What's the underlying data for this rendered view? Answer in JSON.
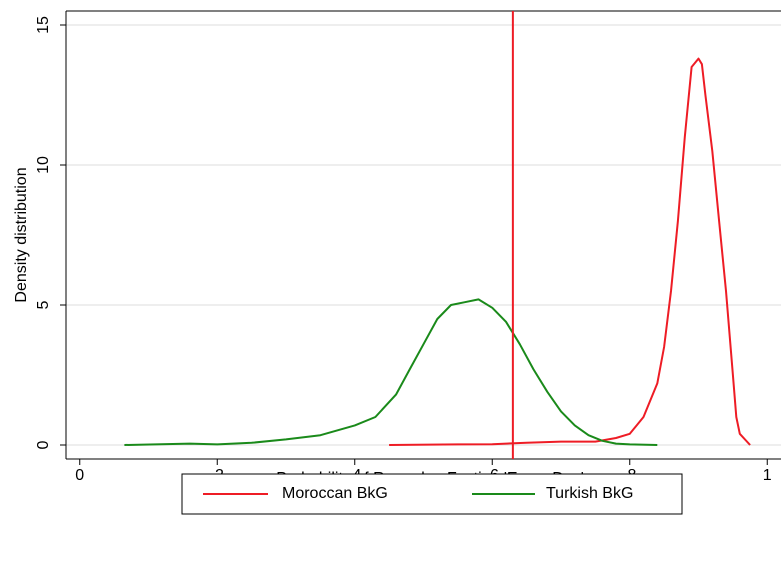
{
  "chart_data": {
    "type": "line",
    "x_label": "Probability of Ramadan Fasting 'Every Day'",
    "y_label": "Density distribution",
    "xlim": [
      -0.02,
      1.02
    ],
    "ylim": [
      -0.5,
      15.5
    ],
    "xticks": [
      0,
      {
        "value": 0.2,
        "label": ".2"
      },
      {
        "value": 0.4,
        "label": ".4"
      },
      {
        "value": 0.6,
        "label": ".6"
      },
      {
        "value": 0.8,
        "label": ".8"
      },
      1
    ],
    "yticks": [
      0,
      5,
      10,
      15
    ],
    "grid": true,
    "legend": "bottom",
    "xline": {
      "value": 0.63,
      "color": "#ee1c25"
    },
    "series": [
      {
        "name": "Moroccan BkG",
        "color": "#ee1c25",
        "x": [
          0.45,
          0.55,
          0.6,
          0.65,
          0.7,
          0.75,
          0.78,
          0.8,
          0.82,
          0.84,
          0.85,
          0.86,
          0.87,
          0.88,
          0.89,
          0.9,
          0.905,
          0.91,
          0.92,
          0.93,
          0.94,
          0.95,
          0.955,
          0.96,
          0.975
        ],
        "values": [
          0,
          0.02,
          0.03,
          0.08,
          0.12,
          0.12,
          0.25,
          0.4,
          1.0,
          2.2,
          3.5,
          5.5,
          8.0,
          11.0,
          13.5,
          13.8,
          13.6,
          12.5,
          10.5,
          8.0,
          5.5,
          2.5,
          1.0,
          0.4,
          0
        ]
      },
      {
        "name": "Turkish BkG",
        "color": "#1a8a1a",
        "x": [
          0.065,
          0.16,
          0.2,
          0.25,
          0.3,
          0.35,
          0.4,
          0.43,
          0.46,
          0.48,
          0.5,
          0.52,
          0.54,
          0.56,
          0.58,
          0.6,
          0.62,
          0.64,
          0.66,
          0.68,
          0.7,
          0.72,
          0.74,
          0.76,
          0.78,
          0.8,
          0.84
        ],
        "values": [
          0,
          0.05,
          0.02,
          0.08,
          0.2,
          0.35,
          0.7,
          1.0,
          1.8,
          2.7,
          3.6,
          4.5,
          5.0,
          5.1,
          5.2,
          4.9,
          4.4,
          3.6,
          2.7,
          1.9,
          1.2,
          0.7,
          0.35,
          0.15,
          0.05,
          0.02,
          0
        ]
      }
    ]
  }
}
